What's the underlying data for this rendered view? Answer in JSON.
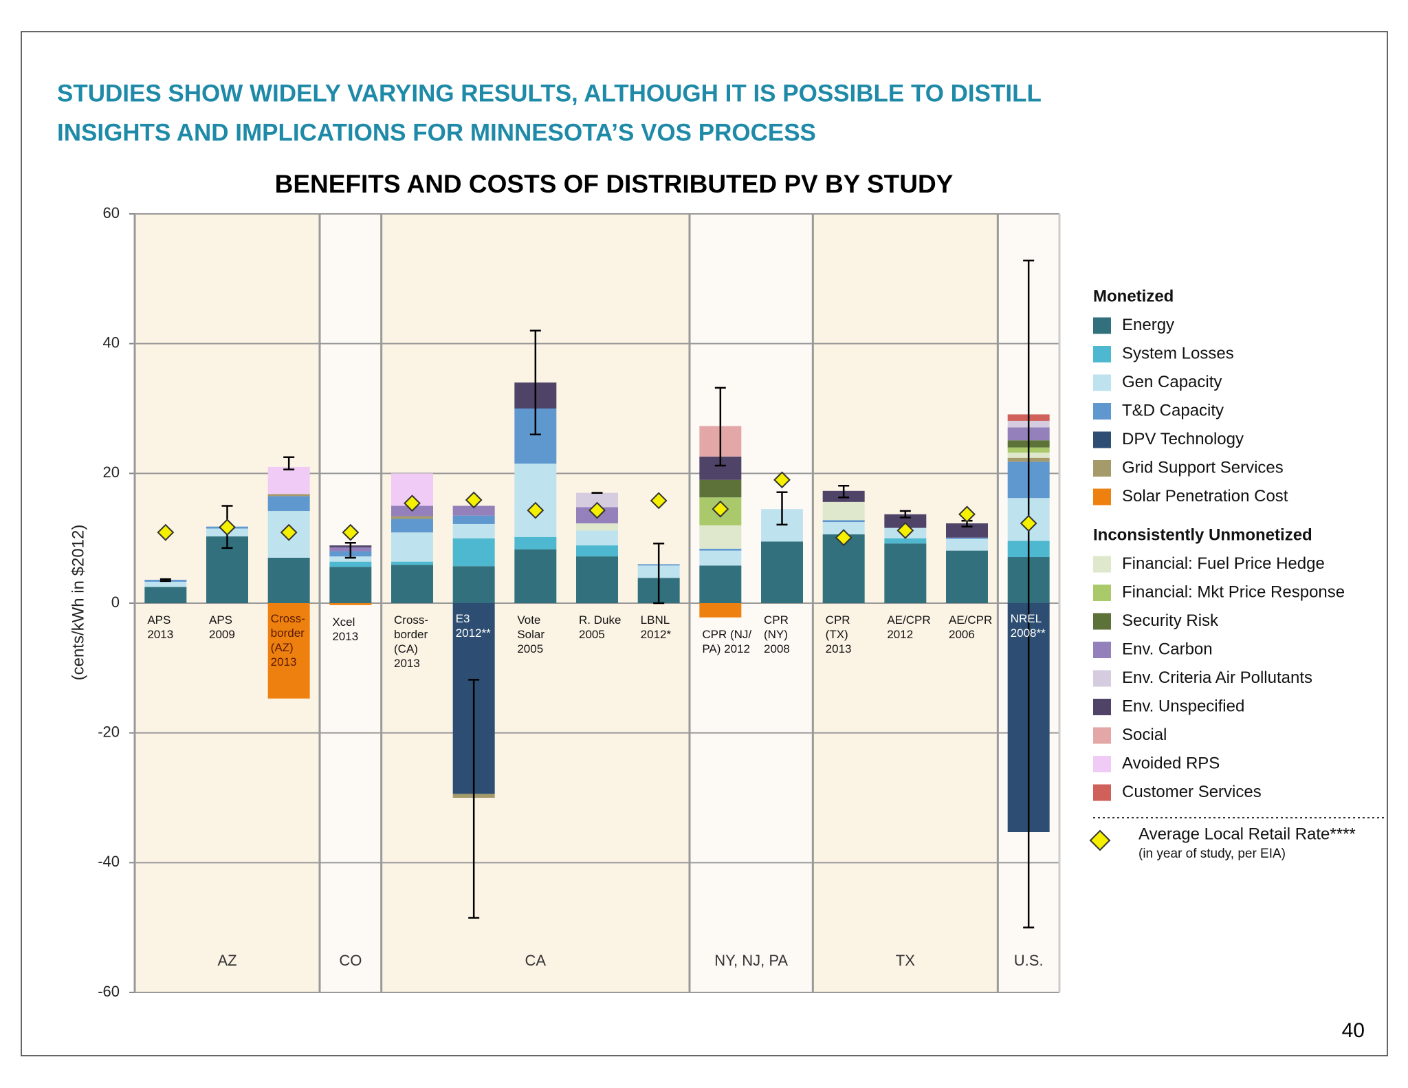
{
  "chart_data": {
    "type": "stacked_bar",
    "page_title": [
      "STUDIES SHOW WIDELY VARYING RESULTS, ALTHOUGH IT IS POSSIBLE TO DISTILL",
      "INSIGHTS AND IMPLICATIONS FOR MINNESOTA’S VOS PROCESS"
    ],
    "title": "BENEFITS AND COSTS OF DISTRIBUTED PV BY STUDY",
    "y_label": "(cents/kWh in $2012)",
    "page_number": "40",
    "ylim": [
      -60,
      60
    ],
    "yticks": [
      -60,
      -40,
      -20,
      0,
      20,
      40,
      60
    ],
    "grid": true,
    "categories": [
      "APS\n2013",
      "APS\n2009",
      "Cross-\nborder\n(AZ)\n2013",
      "Xcel\n2013",
      "Cross-\nborder\n(CA)\n2013",
      "E3\n2012**",
      "Vote\nSolar\n2005",
      "R. Duke\n2005",
      "LBNL\n2012*",
      "CPR (NJ/\nPA) 2012",
      "CPR\n(NY)\n2008",
      "CPR\n(TX)\n2013",
      "AE/CPR\n2012",
      "AE/CPR\n2006",
      "NREL\n2008**"
    ],
    "groups": [
      {
        "label": "AZ",
        "size": 3
      },
      {
        "label": "CO",
        "size": 1
      },
      {
        "label": "CA",
        "size": 5
      },
      {
        "label": "NY, NJ, PA",
        "size": 2
      },
      {
        "label": "TX",
        "size": 3
      },
      {
        "label": "U.S.",
        "size": 1
      }
    ],
    "legend_groups": [
      {
        "title": "Monetized",
        "count": 7
      },
      {
        "title": "Inconsistently Unmonetized",
        "count": 9
      }
    ],
    "series": [
      {
        "name": "Energy",
        "color": "#31707c",
        "values": [
          2.5,
          10.3,
          7,
          5.6,
          5.9,
          5.7,
          8.3,
          7.2,
          3.9,
          5.8,
          9.5,
          10.6,
          9.2,
          8.1,
          7.1
        ]
      },
      {
        "name": "System Losses",
        "color": "#4db8cf",
        "values": [
          0,
          0,
          0,
          0.8,
          0.5,
          4.3,
          1.9,
          1.7,
          0,
          0,
          0,
          0,
          0.8,
          0,
          2.5
        ]
      },
      {
        "name": "Gen Capacity",
        "color": "#bfe3ee",
        "values": [
          0.8,
          1.2,
          7.2,
          0.8,
          4.5,
          2.2,
          11.3,
          2.3,
          1.9,
          2.3,
          5,
          1.9,
          1.6,
          1.8,
          6.6
        ]
      },
      {
        "name": "T&D Capacity",
        "color": "#5f97cf",
        "values": [
          0.3,
          0.3,
          2.3,
          0.8,
          2.1,
          1.3,
          8.5,
          0,
          0.2,
          0.3,
          0,
          0.3,
          0,
          0.2,
          5.6
        ]
      },
      {
        "name": "DPV Technology",
        "color": "#2d4e72",
        "values": [
          0,
          0,
          0,
          0,
          0,
          -29.4,
          0,
          0,
          0,
          0,
          0,
          0,
          0,
          0,
          -35.3
        ]
      },
      {
        "name": "Grid Support Services",
        "color": "#a49a6a",
        "values": [
          0,
          0,
          0.3,
          0,
          0.4,
          -0.6,
          0,
          0,
          0,
          0,
          0,
          0,
          0,
          0,
          0.6
        ]
      },
      {
        "name": "Solar Penetration Cost",
        "color": "#ee8010",
        "values": [
          0,
          0,
          -14.7,
          -0.3,
          0,
          0,
          0,
          0,
          0,
          -2.2,
          0,
          0,
          0,
          0,
          0
        ]
      },
      {
        "name": "Financial: Fuel Price Hedge",
        "color": "#dfe8cc",
        "values": [
          0,
          0,
          0,
          0,
          0,
          0,
          0,
          1.1,
          0,
          3.6,
          0,
          2.8,
          0,
          0,
          0.8
        ]
      },
      {
        "name": "Financial: Mkt Price Response",
        "color": "#a9c96a",
        "values": [
          0,
          0,
          0,
          0,
          0,
          0,
          0,
          0,
          0,
          4.3,
          0,
          0,
          0,
          0,
          0.8
        ]
      },
      {
        "name": "Security Risk",
        "color": "#5d7238",
        "values": [
          0,
          0,
          0,
          0,
          0,
          0,
          0,
          0,
          0,
          2.7,
          0,
          0,
          0,
          0,
          1.1
        ]
      },
      {
        "name": "Env. Carbon",
        "color": "#9480ba",
        "values": [
          0,
          0,
          0,
          0.6,
          1.6,
          1.5,
          0,
          2.5,
          0,
          0,
          0,
          0,
          0,
          0,
          2
        ]
      },
      {
        "name": "Env. Criteria Air Pollutants",
        "color": "#d6cce0",
        "values": [
          0,
          0,
          0,
          0,
          0,
          0,
          0,
          2.2,
          0,
          0,
          0,
          0,
          0,
          0,
          1
        ]
      },
      {
        "name": "Env. Unspecified",
        "color": "#4f4468",
        "values": [
          0,
          0,
          0,
          0.3,
          0,
          0,
          4,
          0,
          0,
          3.6,
          0,
          1.7,
          2.1,
          2.2,
          0
        ]
      },
      {
        "name": "Social",
        "color": "#e4a7a7",
        "values": [
          0,
          0,
          0,
          0,
          0,
          0,
          0,
          0,
          0,
          4.7,
          0,
          0,
          0,
          0,
          0
        ]
      },
      {
        "name": "Avoided RPS",
        "color": "#f0cbf5",
        "values": [
          0,
          0,
          4.2,
          0,
          5,
          0,
          0,
          0,
          0,
          0,
          0,
          0,
          0,
          0,
          0
        ]
      },
      {
        "name": "Customer Services",
        "color": "#d0605a",
        "values": [
          0,
          0,
          0,
          0,
          0,
          0,
          0,
          0,
          0,
          0,
          0,
          0,
          0,
          0,
          1
        ]
      }
    ],
    "error_low": [
      3.4,
      8.5,
      20.6,
      7,
      null,
      -48.5,
      26,
      17,
      0,
      21.2,
      12.1,
      16.3,
      13.2,
      11.8,
      -50
    ],
    "error_high": [
      3.7,
      15,
      22.5,
      9.3,
      null,
      -11.8,
      42,
      17,
      9.2,
      33.2,
      17.1,
      18.1,
      14.2,
      12.7,
      52.8
    ],
    "retail_rate": {
      "name": "Average Local Retail Rate****",
      "note": "(in year of study, per EIA)",
      "color": "#f5f000",
      "values": [
        10.9,
        11.7,
        10.9,
        10.9,
        15.4,
        15.9,
        14.3,
        14.3,
        15.8,
        14.5,
        19,
        10.1,
        11.2,
        13.7,
        12.3
      ]
    }
  }
}
